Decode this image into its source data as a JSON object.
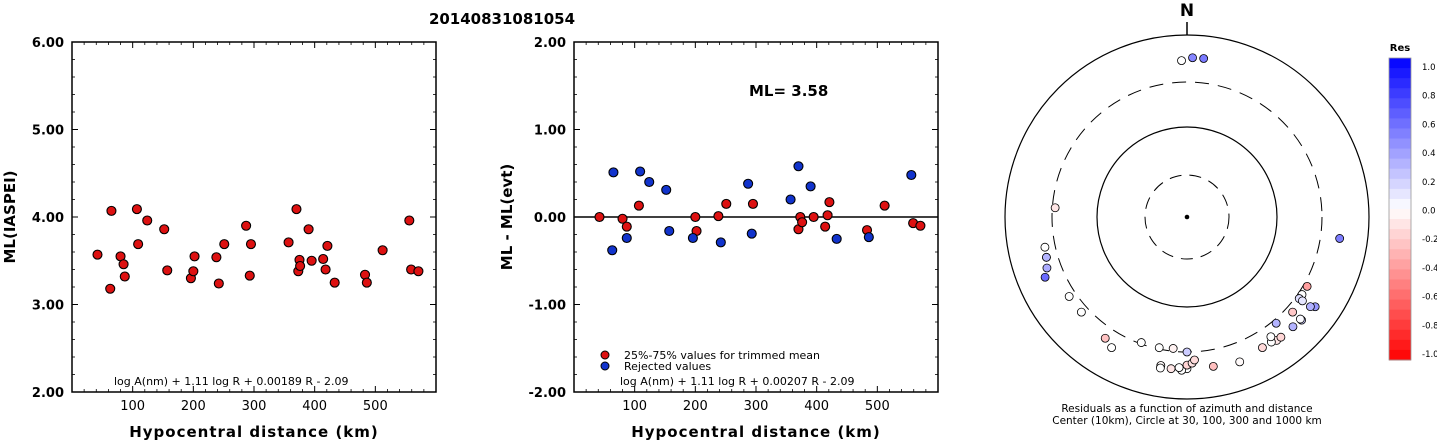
{
  "page_title": "20140831081054",
  "colors": {
    "accepted": "#dd1111",
    "rejected": "#1133cc",
    "axis": "#000000"
  },
  "chart_data": [
    {
      "id": "ml-vs-distance",
      "type": "scatter",
      "title": "",
      "xlabel": "Hypocentral distance (km)",
      "ylabel": "ML(IASPEI)",
      "xlim": [
        0,
        600
      ],
      "ylim": [
        2.0,
        6.0
      ],
      "x_ticks": [
        100,
        200,
        300,
        400,
        500
      ],
      "y_ticks": [
        "2.00",
        "3.00",
        "4.00",
        "5.00",
        "6.00"
      ],
      "formula": "log A(nm) + 1.11 log R + 0.00189 R - 2.09",
      "series": [
        {
          "points": [
            [
              42,
              3.57
            ],
            [
              63,
              3.18
            ],
            [
              65,
              4.07
            ],
            [
              80,
              3.55
            ],
            [
              85,
              3.46
            ],
            [
              87,
              3.32
            ],
            [
              107,
              4.09
            ],
            [
              109,
              3.69
            ],
            [
              124,
              3.96
            ],
            [
              152,
              3.86
            ],
            [
              157,
              3.39
            ],
            [
              196,
              3.3
            ],
            [
              200,
              3.38
            ],
            [
              202,
              3.55
            ],
            [
              238,
              3.54
            ],
            [
              242,
              3.24
            ],
            [
              251,
              3.69
            ],
            [
              287,
              3.9
            ],
            [
              293,
              3.33
            ],
            [
              295,
              3.69
            ],
            [
              357,
              3.71
            ],
            [
              370,
              4.09
            ],
            [
              373,
              3.38
            ],
            [
              375,
              3.51
            ],
            [
              376,
              3.44
            ],
            [
              390,
              3.86
            ],
            [
              395,
              3.5
            ],
            [
              414,
              3.52
            ],
            [
              418,
              3.4
            ],
            [
              421,
              3.67
            ],
            [
              433,
              3.25
            ],
            [
              483,
              3.34
            ],
            [
              486,
              3.25
            ],
            [
              512,
              3.62
            ],
            [
              556,
              3.96
            ],
            [
              559,
              3.4
            ],
            [
              571,
              3.38
            ]
          ]
        }
      ]
    },
    {
      "id": "residual-vs-distance",
      "type": "scatter",
      "title": "",
      "xlabel": "Hypocentral distance (km)",
      "ylabel": "ML - ML(evt)",
      "xlim": [
        0,
        600
      ],
      "ylim": [
        -2.0,
        2.0
      ],
      "x_ticks": [
        100,
        200,
        300,
        400,
        500
      ],
      "y_ticks": [
        "-2.00",
        "-1.00",
        "0.00",
        "1.00",
        "2.00"
      ],
      "annotation": "ML= 3.58",
      "formula": "log A(nm) + 1.11 log R + 0.00207 R - 2.09",
      "series": [
        {
          "name": "25%-75% values for trimmed mean",
          "points": [
            [
              42,
              0.0
            ],
            [
              80,
              -0.02
            ],
            [
              87,
              -0.11
            ],
            [
              107,
              0.13
            ],
            [
              200,
              0.0
            ],
            [
              202,
              -0.16
            ],
            [
              238,
              0.01
            ],
            [
              251,
              0.15
            ],
            [
              295,
              0.15
            ],
            [
              370,
              -0.14
            ],
            [
              373,
              0.0
            ],
            [
              376,
              -0.06
            ],
            [
              395,
              0.0
            ],
            [
              414,
              -0.11
            ],
            [
              418,
              0.02
            ],
            [
              421,
              0.17
            ],
            [
              483,
              -0.15
            ],
            [
              512,
              0.13
            ],
            [
              559,
              -0.07
            ],
            [
              571,
              -0.1
            ]
          ]
        },
        {
          "name": "Rejected values",
          "points": [
            [
              63,
              -0.38
            ],
            [
              65,
              0.51
            ],
            [
              87,
              -0.24
            ],
            [
              109,
              0.52
            ],
            [
              124,
              0.4
            ],
            [
              152,
              0.31
            ],
            [
              157,
              -0.16
            ],
            [
              196,
              -0.24
            ],
            [
              242,
              -0.29
            ],
            [
              287,
              0.38
            ],
            [
              293,
              -0.19
            ],
            [
              357,
              0.2
            ],
            [
              370,
              0.58
            ],
            [
              390,
              0.35
            ],
            [
              433,
              -0.25
            ],
            [
              486,
              -0.23
            ],
            [
              556,
              0.48
            ]
          ]
        }
      ]
    },
    {
      "id": "azimuth-residual-map",
      "type": "scatter",
      "north_label": "N",
      "caption_line1": "Residuals as a function of azimuth and distance",
      "caption_line2": "Center (10km), Circle at 30, 100, 300 and 1000 km",
      "colorbar": {
        "title": "Res",
        "ticks": [
          "1.0",
          "0.8",
          "0.6",
          "0.4",
          "0.2",
          "0.0",
          "-0.2",
          "-0.4",
          "-0.6",
          "-0.8",
          "-1.0"
        ],
        "range": [
          -1.0,
          1.0
        ]
      },
      "stations": [
        {
          "az": 2,
          "dist": 560,
          "res": 0.48
        },
        {
          "az": 6,
          "dist": 560,
          "res": 0.52
        },
        {
          "az": 358,
          "dist": 520,
          "res": 0.0
        },
        {
          "az": 98,
          "dist": 490,
          "res": 0.51
        },
        {
          "az": 125,
          "dist": 520,
          "res": 0.4
        },
        {
          "az": 126,
          "dist": 470,
          "res": 0.31
        },
        {
          "az": 132,
          "dist": 490,
          "res": 0.2
        },
        {
          "az": 136,
          "dist": 470,
          "res": 0.3
        },
        {
          "az": 132,
          "dist": 470,
          "res": 0.02
        },
        {
          "az": 144,
          "dist": 470,
          "res": -0.1
        },
        {
          "az": 146,
          "dist": 450,
          "res": 0.0
        },
        {
          "az": 150,
          "dist": 450,
          "res": -0.15
        },
        {
          "az": 142,
          "dist": 470,
          "res": -0.16
        },
        {
          "az": 145,
          "dist": 400,
          "res": 0.0
        },
        {
          "az": 140,
          "dist": 330,
          "res": 0.3
        },
        {
          "az": 124,
          "dist": 330,
          "res": 0.0
        },
        {
          "az": 126,
          "dist": 330,
          "res": 0.13
        },
        {
          "az": 120,
          "dist": 330,
          "res": -0.38
        },
        {
          "az": 126,
          "dist": 365,
          "res": 0.1
        },
        {
          "az": 132,
          "dist": 360,
          "res": -0.22
        },
        {
          "az": 160,
          "dist": 490,
          "res": -0.02
        },
        {
          "az": 170,
          "dist": 460,
          "res": -0.25
        },
        {
          "az": 180,
          "dist": 460,
          "res": 0.0
        },
        {
          "az": 182,
          "dist": 480,
          "res": 0.0
        },
        {
          "az": 183,
          "dist": 450,
          "res": 0.0
        },
        {
          "az": 186,
          "dist": 470,
          "res": -0.1
        },
        {
          "az": 190,
          "dist": 450,
          "res": -0.02
        },
        {
          "az": 190,
          "dist": 480,
          "res": 0.0
        },
        {
          "az": 180,
          "dist": 420,
          "res": -0.17
        },
        {
          "az": 178,
          "dist": 400,
          "res": -0.11
        },
        {
          "az": 177,
          "dist": 370,
          "res": -0.14
        },
        {
          "az": 180,
          "dist": 300,
          "res": 0.2
        },
        {
          "az": 186,
          "dist": 280,
          "res": -0.05
        },
        {
          "az": 192,
          "dist": 290,
          "res": 0.0
        },
        {
          "az": 200,
          "dist": 290,
          "res": 0.0
        },
        {
          "az": 210,
          "dist": 450,
          "res": 0.0
        },
        {
          "az": 214,
          "dist": 400,
          "res": -0.24
        },
        {
          "az": 228,
          "dist": 360,
          "res": 0.0
        },
        {
          "az": 236,
          "dist": 360,
          "res": 0.0
        },
        {
          "az": 247,
          "dist": 490,
          "res": 0.58
        },
        {
          "az": 250,
          "dist": 430,
          "res": 0.33
        },
        {
          "az": 254,
          "dist": 400,
          "res": 0.35
        },
        {
          "az": 258,
          "dist": 390,
          "res": 0.0
        },
        {
          "az": 274,
          "dist": 280,
          "res": -0.1
        },
        {
          "az": 254,
          "dist": 400,
          "res": 0.3
        }
      ]
    }
  ]
}
